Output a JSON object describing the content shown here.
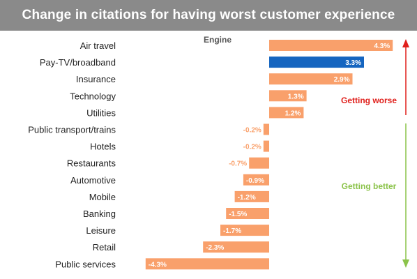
{
  "title": "Change in citations for having worst customer experience",
  "legend_label": "Engine",
  "colors": {
    "title_bg": "#8a8a8a",
    "bar_default": "#f9a06b",
    "bar_highlight": "#1565c0",
    "value_text_on_bar": "#ffffff",
    "worse_arrow": "#e0201c",
    "better_arrow": "#8bc34a"
  },
  "annotations": {
    "getting_worse": "Getting worse",
    "getting_better": "Getting better"
  },
  "chart_data": {
    "type": "bar",
    "orientation": "horizontal",
    "categories": [
      "Air travel",
      "Pay-TV/broadband",
      "Insurance",
      "Technology",
      "Utilities",
      "Public transport/trains",
      "Hotels",
      "Restaurants",
      "Automotive",
      "Mobile",
      "Banking",
      "Leisure",
      "Retail",
      "Public services"
    ],
    "values": [
      4.3,
      3.3,
      2.9,
      1.3,
      1.2,
      -0.2,
      -0.2,
      -0.7,
      -0.9,
      -1.2,
      -1.5,
      -1.7,
      -2.3,
      -4.3
    ],
    "value_labels": [
      "4.3%",
      "3.3%",
      "2.9%",
      "1.3%",
      "1.2%",
      "-0.2%",
      "-0.2%",
      "-0.7%",
      "-0.9%",
      "-1.2%",
      "-1.5%",
      "-1.7%",
      "-2.3%",
      "-4.3%"
    ],
    "highlight": "Pay-TV/broadband",
    "xlim": [
      -4.3,
      4.3
    ],
    "title": "Change in citations for having worst customer experience",
    "xlabel": "",
    "ylabel": ""
  }
}
